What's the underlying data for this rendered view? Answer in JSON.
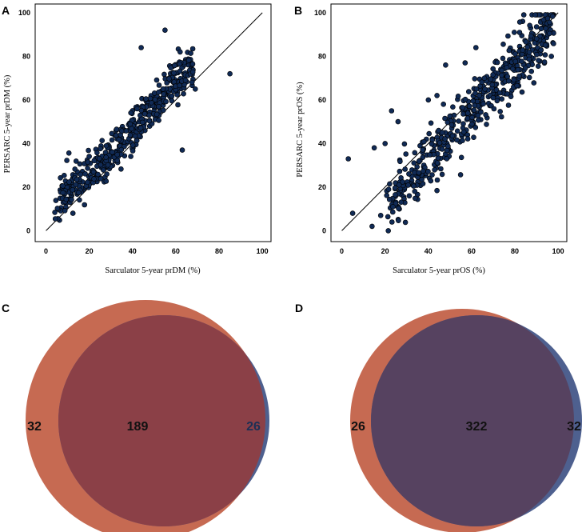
{
  "chart_data": [
    {
      "panel": "A",
      "type": "scatter",
      "xlabel": "Sarculator 5-year prDM (%)",
      "ylabel": "PERSARC 5-year prDM (%)",
      "xlim": [
        -5,
        104
      ],
      "ylim": [
        -5,
        104
      ],
      "xticks": [
        "0",
        "20",
        "40",
        "60",
        "80",
        "100"
      ],
      "yticks": [
        "0",
        "20",
        "40",
        "60",
        "80",
        "100"
      ],
      "identity_line": true,
      "point_color": "#102a55",
      "outliers": [
        [
          55,
          92
        ],
        [
          62,
          82
        ],
        [
          44,
          84
        ],
        [
          85,
          72
        ],
        [
          69,
          65
        ],
        [
          63,
          37
        ]
      ],
      "cloud": {
        "n": 470,
        "x_range": [
          4,
          68
        ],
        "intercept": 8.5,
        "slope": 0.86,
        "curve": 0.0022,
        "spread": 5.0,
        "seed": 11
      }
    },
    {
      "panel": "B",
      "type": "scatter",
      "xlabel": "Sarculator 5-year prOS (%)",
      "ylabel": "PERSARC 5-year prOS (%)",
      "xlim": [
        -5,
        104
      ],
      "ylim": [
        -5,
        104
      ],
      "xticks": [
        "0",
        "20",
        "40",
        "60",
        "80",
        "100"
      ],
      "yticks": [
        "0",
        "20",
        "40",
        "60",
        "80",
        "100"
      ],
      "identity_line": true,
      "point_color": "#102a55",
      "outliers": [
        [
          3,
          33
        ],
        [
          5,
          8
        ],
        [
          14,
          2
        ],
        [
          18,
          7
        ],
        [
          23,
          55
        ],
        [
          26,
          50
        ],
        [
          20,
          40
        ],
        [
          15,
          38
        ],
        [
          48,
          76
        ],
        [
          57,
          77
        ],
        [
          62,
          84
        ],
        [
          47,
          58
        ],
        [
          40,
          60
        ],
        [
          44,
          62
        ]
      ],
      "cloud": {
        "n": 540,
        "x_range": [
          20,
          98
        ],
        "intercept": -10,
        "slope": 1.08,
        "curve": 0,
        "spread": 6.5,
        "seed": 23
      }
    }
  ],
  "venns": [
    {
      "panel": "C",
      "left_only": "32",
      "both": "189",
      "right_only": "26",
      "left_color": "#c66a52",
      "right_color": "#4e608f",
      "overlap_color": "#8b4047"
    },
    {
      "panel": "D",
      "left_only": "26",
      "both": "322",
      "right_only": "32",
      "left_color": "#c66a52",
      "right_color": "#4e608f",
      "overlap_color": "#564260"
    }
  ]
}
